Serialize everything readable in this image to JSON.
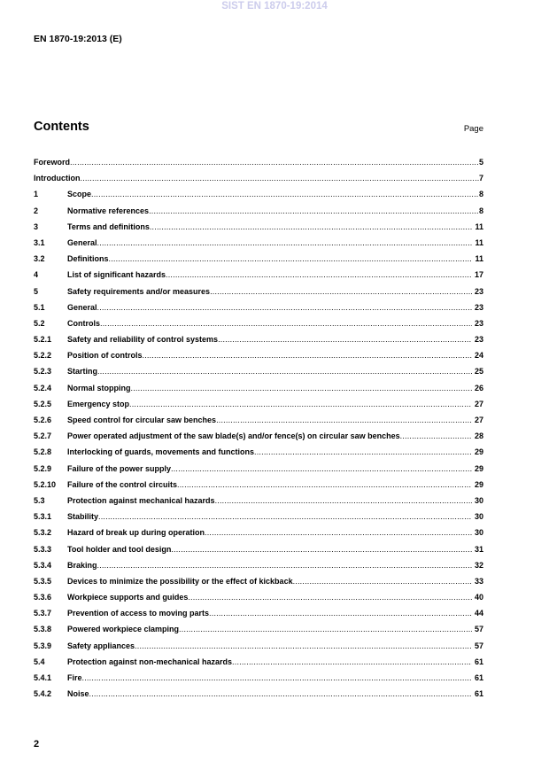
{
  "watermark": "SIST EN 1870-19:2014",
  "header": "EN 1870-19:2013 (E)",
  "title": "Contents",
  "page_label": "Page",
  "entries": [
    {
      "num": "",
      "title": "Foreword",
      "page": "5"
    },
    {
      "num": "",
      "title": "Introduction",
      "page": "7"
    },
    {
      "num": "1",
      "title": "Scope",
      "page": "8"
    },
    {
      "num": "2",
      "title": "Normative references",
      "page": "8"
    },
    {
      "num": "3",
      "title": "Terms and definitions",
      "page": "11"
    },
    {
      "num": "3.1",
      "title": "General",
      "page": "11"
    },
    {
      "num": "3.2",
      "title": "Definitions",
      "page": "11"
    },
    {
      "num": "4",
      "title": "List of significant hazards",
      "page": "17"
    },
    {
      "num": "5",
      "title": "Safety requirements and/or measures",
      "page": "23"
    },
    {
      "num": "5.1",
      "title": "General",
      "page": "23"
    },
    {
      "num": "5.2",
      "title": "Controls",
      "page": "23"
    },
    {
      "num": "5.2.1",
      "title": "Safety and reliability of control systems",
      "page": "23"
    },
    {
      "num": "5.2.2",
      "title": "Position of controls",
      "page": "24"
    },
    {
      "num": "5.2.3",
      "title": "Starting",
      "page": "25"
    },
    {
      "num": "5.2.4",
      "title": "Normal stopping",
      "page": "26"
    },
    {
      "num": "5.2.5",
      "title": "Emergency stop",
      "page": "27"
    },
    {
      "num": "5.2.6",
      "title": "Speed control for circular saw benches",
      "page": "27"
    },
    {
      "num": "5.2.7",
      "title": "Power operated adjustment of the saw blade(s) and/or fence(s) on circular saw benches",
      "page": "28"
    },
    {
      "num": "5.2.8",
      "title": "Interlocking of guards, movements and functions",
      "page": "29"
    },
    {
      "num": "5.2.9",
      "title": "Failure of the power supply",
      "page": "29"
    },
    {
      "num": "5.2.10",
      "title": "Failure of the control circuits",
      "page": "29"
    },
    {
      "num": "5.3",
      "title": "Protection against mechanical hazards",
      "page": "30"
    },
    {
      "num": "5.3.1",
      "title": "Stability",
      "page": "30"
    },
    {
      "num": "5.3.2",
      "title": "Hazard of break up during operation",
      "page": "30"
    },
    {
      "num": "5.3.3",
      "title": "Tool holder and tool design",
      "page": "31"
    },
    {
      "num": "5.3.4",
      "title": "Braking",
      "page": "32"
    },
    {
      "num": "5.3.5",
      "title": "Devices to minimize the possibility or the effect of kickback",
      "page": "33"
    },
    {
      "num": "5.3.6",
      "title": "Workpiece supports and guides",
      "page": "40"
    },
    {
      "num": "5.3.7",
      "title": "Prevention of access to moving parts",
      "page": "44"
    },
    {
      "num": "5.3.8",
      "title": "Powered workpiece clamping",
      "page": "57"
    },
    {
      "num": "5.3.9",
      "title": "Safety appliances",
      "page": "57"
    },
    {
      "num": "5.4",
      "title": "Protection against non-mechanical hazards",
      "page": "61"
    },
    {
      "num": "5.4.1",
      "title": "Fire",
      "page": "61"
    },
    {
      "num": "5.4.2",
      "title": "Noise",
      "page": "61"
    }
  ],
  "page_number": "2"
}
